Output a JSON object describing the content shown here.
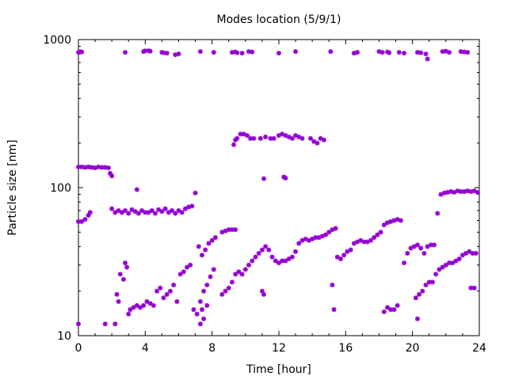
{
  "chart_data": {
    "type": "scatter",
    "title": "Modes location (5/9/1)",
    "xlabel": "Time [hour]",
    "ylabel": "Particle size [nm]",
    "xlim": [
      0,
      24
    ],
    "ylim": [
      10,
      1000
    ],
    "yscale": "log",
    "grid": false,
    "marker_color": "#9400d3",
    "x_ticks": [
      0,
      4,
      8,
      12,
      16,
      20,
      24
    ],
    "x_tick_labels": [
      "0",
      "4",
      "8",
      "12",
      "16",
      "20",
      "24"
    ],
    "y_ticks": [
      10,
      100,
      1000
    ],
    "y_tick_labels": [
      "10",
      "100",
      "1000"
    ],
    "series": [
      {
        "points": [
          [
            0.0,
            820
          ],
          [
            0.1,
            830
          ],
          [
            0.2,
            825
          ],
          [
            2.8,
            820
          ],
          [
            3.9,
            830
          ],
          [
            4.0,
            840
          ],
          [
            4.2,
            840
          ],
          [
            4.3,
            835
          ],
          [
            5.0,
            820
          ],
          [
            5.1,
            815
          ],
          [
            5.3,
            810
          ],
          [
            5.8,
            790
          ],
          [
            6.0,
            800
          ],
          [
            7.3,
            830
          ],
          [
            8.1,
            820
          ],
          [
            9.2,
            820
          ],
          [
            9.4,
            825
          ],
          [
            9.5,
            815
          ],
          [
            9.8,
            810
          ],
          [
            10.2,
            830
          ],
          [
            10.4,
            825
          ],
          [
            12.0,
            810
          ],
          [
            13.0,
            830
          ],
          [
            15.1,
            830
          ],
          [
            16.5,
            810
          ],
          [
            16.7,
            820
          ],
          [
            18.0,
            830
          ],
          [
            18.2,
            820
          ],
          [
            18.5,
            825
          ],
          [
            18.6,
            815
          ],
          [
            19.2,
            820
          ],
          [
            19.5,
            810
          ],
          [
            20.3,
            820
          ],
          [
            20.5,
            815
          ],
          [
            20.8,
            800
          ],
          [
            20.9,
            740
          ],
          [
            21.8,
            830
          ],
          [
            22.0,
            835
          ],
          [
            22.2,
            820
          ],
          [
            22.9,
            830
          ],
          [
            23.1,
            825
          ],
          [
            23.3,
            820
          ],
          [
            9.3,
            195
          ],
          [
            9.4,
            210
          ],
          [
            9.5,
            215
          ],
          [
            9.7,
            230
          ],
          [
            9.9,
            230
          ],
          [
            10.1,
            225
          ],
          [
            10.3,
            215
          ],
          [
            10.5,
            215
          ],
          [
            10.9,
            215
          ],
          [
            11.2,
            220
          ],
          [
            11.5,
            215
          ],
          [
            11.7,
            215
          ],
          [
            12.0,
            225
          ],
          [
            12.2,
            230
          ],
          [
            12.4,
            225
          ],
          [
            12.6,
            220
          ],
          [
            12.8,
            215
          ],
          [
            13.0,
            225
          ],
          [
            13.2,
            220
          ],
          [
            13.4,
            215
          ],
          [
            13.9,
            215
          ],
          [
            14.1,
            205
          ],
          [
            14.3,
            200
          ],
          [
            14.5,
            215
          ],
          [
            14.7,
            210
          ],
          [
            0.0,
            138
          ],
          [
            0.2,
            138
          ],
          [
            0.4,
            137
          ],
          [
            0.6,
            138
          ],
          [
            0.8,
            137
          ],
          [
            1.0,
            136
          ],
          [
            1.2,
            138
          ],
          [
            1.4,
            137
          ],
          [
            1.6,
            137
          ],
          [
            1.8,
            136
          ],
          [
            1.9,
            125
          ],
          [
            2.0,
            120
          ],
          [
            3.5,
            97
          ],
          [
            7.0,
            92
          ],
          [
            11.1,
            115
          ],
          [
            12.3,
            118
          ],
          [
            12.4,
            116
          ],
          [
            2.0,
            72
          ],
          [
            2.2,
            68
          ],
          [
            2.4,
            70
          ],
          [
            2.6,
            68
          ],
          [
            2.8,
            70
          ],
          [
            3.0,
            67
          ],
          [
            3.2,
            71
          ],
          [
            3.4,
            69
          ],
          [
            3.6,
            67
          ],
          [
            3.8,
            70
          ],
          [
            4.0,
            68
          ],
          [
            4.2,
            68
          ],
          [
            4.4,
            70
          ],
          [
            4.6,
            67
          ],
          [
            4.8,
            71
          ],
          [
            5.0,
            69
          ],
          [
            5.2,
            72
          ],
          [
            5.4,
            68
          ],
          [
            5.6,
            70
          ],
          [
            5.8,
            67
          ],
          [
            6.0,
            70
          ],
          [
            6.2,
            68
          ],
          [
            6.4,
            72
          ],
          [
            6.6,
            74
          ],
          [
            6.8,
            75
          ],
          [
            0.0,
            59
          ],
          [
            0.2,
            59
          ],
          [
            0.4,
            61
          ],
          [
            0.6,
            65
          ],
          [
            0.7,
            68
          ],
          [
            21.5,
            67
          ],
          [
            21.7,
            90
          ],
          [
            21.9,
            92
          ],
          [
            22.1,
            93
          ],
          [
            22.3,
            94
          ],
          [
            22.5,
            93
          ],
          [
            22.7,
            95
          ],
          [
            22.9,
            94
          ],
          [
            23.1,
            94
          ],
          [
            23.3,
            95
          ],
          [
            23.5,
            94
          ],
          [
            23.7,
            95
          ],
          [
            23.9,
            93
          ],
          [
            2.3,
            19
          ],
          [
            2.4,
            17
          ],
          [
            2.5,
            26
          ],
          [
            2.7,
            24
          ],
          [
            2.8,
            31
          ],
          [
            2.9,
            29
          ],
          [
            3.0,
            14
          ],
          [
            3.1,
            15
          ],
          [
            3.3,
            15.5
          ],
          [
            3.5,
            16
          ],
          [
            3.7,
            15.5
          ],
          [
            3.9,
            16
          ],
          [
            4.1,
            17
          ],
          [
            4.3,
            16.5
          ],
          [
            4.5,
            16
          ],
          [
            4.7,
            20
          ],
          [
            4.9,
            21
          ],
          [
            5.1,
            18
          ],
          [
            5.3,
            19
          ],
          [
            5.5,
            20
          ],
          [
            5.7,
            22
          ],
          [
            5.9,
            17
          ],
          [
            6.1,
            26
          ],
          [
            6.3,
            27
          ],
          [
            6.5,
            29
          ],
          [
            6.7,
            30
          ],
          [
            6.9,
            15
          ],
          [
            7.1,
            14
          ],
          [
            7.3,
            17
          ],
          [
            7.4,
            15
          ],
          [
            7.5,
            20
          ],
          [
            7.7,
            22
          ],
          [
            7.9,
            25
          ],
          [
            8.1,
            28
          ],
          [
            7.2,
            40
          ],
          [
            7.4,
            35
          ],
          [
            7.6,
            38
          ],
          [
            7.8,
            42
          ],
          [
            8.0,
            44
          ],
          [
            8.2,
            46
          ],
          [
            8.6,
            50
          ],
          [
            8.8,
            51
          ],
          [
            9.0,
            52
          ],
          [
            9.2,
            52
          ],
          [
            9.4,
            52
          ],
          [
            8.6,
            19
          ],
          [
            8.8,
            20
          ],
          [
            9.0,
            21
          ],
          [
            9.2,
            23
          ],
          [
            9.4,
            26
          ],
          [
            9.6,
            27
          ],
          [
            9.8,
            26
          ],
          [
            10.0,
            28
          ],
          [
            10.2,
            30
          ],
          [
            10.4,
            32
          ],
          [
            10.6,
            34
          ],
          [
            10.8,
            36
          ],
          [
            11.0,
            38
          ],
          [
            11.2,
            40
          ],
          [
            11.4,
            38
          ],
          [
            11.6,
            34
          ],
          [
            11.8,
            32
          ],
          [
            12.0,
            31
          ],
          [
            12.2,
            32
          ],
          [
            12.4,
            32
          ],
          [
            12.6,
            33
          ],
          [
            12.8,
            34
          ],
          [
            13.0,
            37
          ],
          [
            13.2,
            42
          ],
          [
            13.4,
            44
          ],
          [
            13.6,
            45
          ],
          [
            13.8,
            44
          ],
          [
            14.0,
            45
          ],
          [
            14.2,
            46
          ],
          [
            14.4,
            46
          ],
          [
            14.6,
            47
          ],
          [
            14.8,
            48
          ],
          [
            15.0,
            50
          ],
          [
            15.2,
            52
          ],
          [
            15.4,
            53
          ],
          [
            11.0,
            20
          ],
          [
            11.1,
            19
          ],
          [
            15.5,
            34
          ],
          [
            15.7,
            33
          ],
          [
            15.9,
            35
          ],
          [
            16.1,
            37
          ],
          [
            16.3,
            38
          ],
          [
            16.5,
            42
          ],
          [
            16.7,
            43
          ],
          [
            16.9,
            44
          ],
          [
            17.1,
            43
          ],
          [
            17.3,
            43
          ],
          [
            17.5,
            44
          ],
          [
            17.7,
            46
          ],
          [
            17.9,
            48
          ],
          [
            18.1,
            50
          ],
          [
            18.3,
            56
          ],
          [
            18.5,
            58
          ],
          [
            18.7,
            59
          ],
          [
            18.9,
            60
          ],
          [
            19.1,
            61
          ],
          [
            19.3,
            60
          ],
          [
            15.2,
            22
          ],
          [
            15.3,
            15
          ],
          [
            18.3,
            14.5
          ],
          [
            18.5,
            15.5
          ],
          [
            18.7,
            15
          ],
          [
            18.9,
            15
          ],
          [
            19.1,
            16
          ],
          [
            19.5,
            31
          ],
          [
            19.7,
            36
          ],
          [
            19.9,
            39
          ],
          [
            20.1,
            40
          ],
          [
            20.3,
            41
          ],
          [
            20.5,
            39
          ],
          [
            20.7,
            36
          ],
          [
            20.9,
            40
          ],
          [
            21.1,
            41
          ],
          [
            21.3,
            41
          ],
          [
            20.2,
            18
          ],
          [
            20.4,
            19
          ],
          [
            20.6,
            20
          ],
          [
            20.8,
            22
          ],
          [
            21.0,
            23
          ],
          [
            21.2,
            23
          ],
          [
            21.4,
            26
          ],
          [
            21.6,
            28
          ],
          [
            21.8,
            29
          ],
          [
            22.0,
            30
          ],
          [
            22.2,
            31
          ],
          [
            22.4,
            31
          ],
          [
            22.6,
            32
          ],
          [
            22.8,
            33
          ],
          [
            23.0,
            35
          ],
          [
            23.2,
            36
          ],
          [
            23.4,
            37
          ],
          [
            23.6,
            36
          ],
          [
            23.8,
            36
          ],
          [
            20.3,
            13
          ],
          [
            23.5,
            21
          ],
          [
            23.7,
            21
          ],
          [
            0.0,
            12
          ],
          [
            1.6,
            12
          ],
          [
            2.2,
            12
          ],
          [
            7.3,
            12
          ],
          [
            7.5,
            13
          ],
          [
            7.7,
            16
          ]
        ]
      }
    ]
  }
}
